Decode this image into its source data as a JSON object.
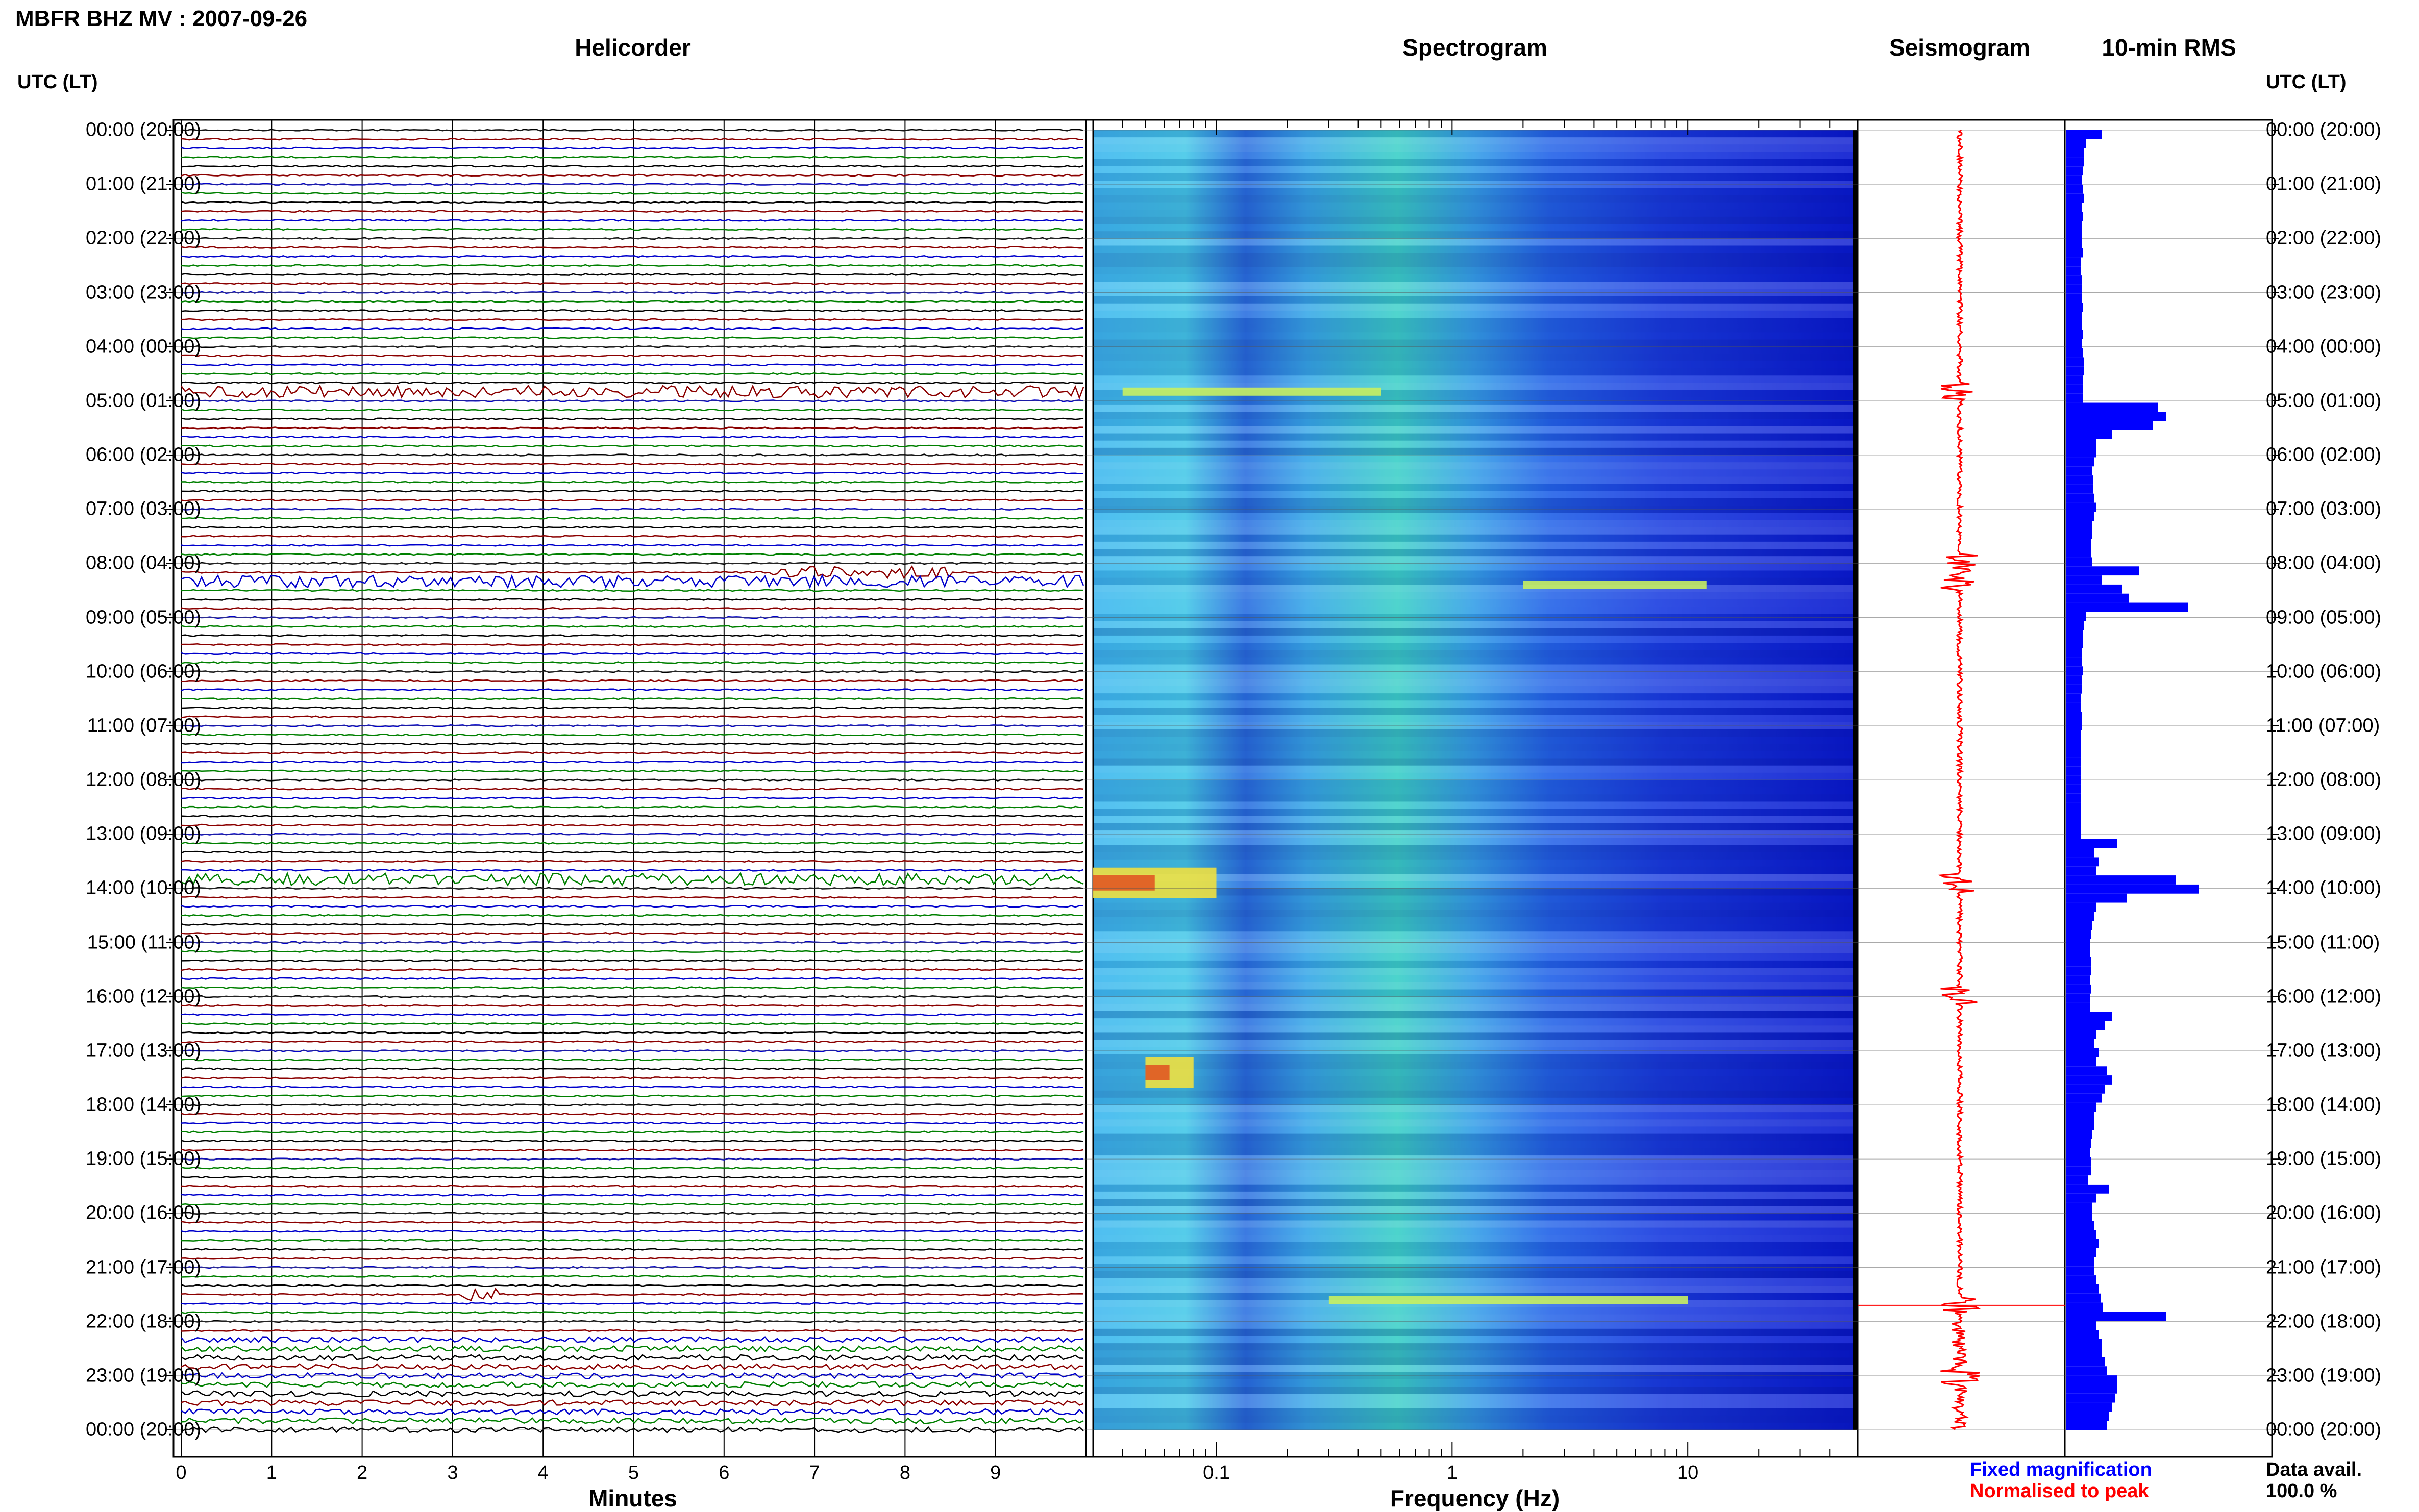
{
  "title": "MBFR BHZ MV : 2007-09-26",
  "panels": {
    "helicorder": "Helicorder",
    "spectrogram": "Spectrogram",
    "seismogram": "Seismogram",
    "rms": "10-min RMS"
  },
  "tz_label_left": "UTC (LT)",
  "tz_label_right": "UTC (LT)",
  "time_labels": [
    "00:00 (20:00)",
    "01:00 (21:00)",
    "02:00 (22:00)",
    "03:00 (23:00)",
    "04:00 (00:00)",
    "05:00 (01:00)",
    "06:00 (02:00)",
    "07:00 (03:00)",
    "08:00 (04:00)",
    "09:00 (05:00)",
    "10:00 (06:00)",
    "11:00 (07:00)",
    "12:00 (08:00)",
    "13:00 (09:00)",
    "14:00 (10:00)",
    "15:00 (11:00)",
    "16:00 (12:00)",
    "17:00 (13:00)",
    "18:00 (14:00)",
    "19:00 (15:00)",
    "20:00 (16:00)",
    "21:00 (17:00)",
    "22:00 (18:00)",
    "23:00 (19:00)",
    "00:00 (20:00)"
  ],
  "x_axis_helicorder": {
    "label": "Minutes",
    "ticks": [
      "0",
      "1",
      "2",
      "3",
      "4",
      "5",
      "6",
      "7",
      "8",
      "9"
    ]
  },
  "x_axis_spectrogram": {
    "label": "Frequency (Hz)",
    "ticks": [
      "0.1",
      "1",
      "10"
    ],
    "scale": "log"
  },
  "legend": {
    "fixed": "Fixed magnification",
    "normalised": "Normalised to peak",
    "fixed_color": "#0000ff",
    "normalised_color": "#ff0000"
  },
  "data_availability": {
    "label": "Data avail.",
    "value": "100.0 %"
  },
  "colors": {
    "trace_cycle": [
      "#000000",
      "#8b0000",
      "#0000cc",
      "#008000"
    ],
    "rms_bar": "#0000ff",
    "seismogram": "#ff0000"
  },
  "chart_data": [
    {
      "type": "line",
      "title": "Helicorder",
      "xlabel": "Minutes",
      "x_range": [
        0,
        10
      ],
      "ylabel": "UTC (LT)",
      "y_range_hours": [
        0,
        24
      ],
      "traces_per_hour": 6,
      "grid": true,
      "notable_events": [
        {
          "hour": 4.83,
          "minute_start": 0,
          "minute_end": 10,
          "description_color": "#8b0000"
        },
        {
          "hour": 8.17,
          "minute_start": 6.5,
          "minute_end": 8.5
        },
        {
          "hour": 8.33,
          "minute_start": 0,
          "minute_end": 10
        },
        {
          "hour": 13.83,
          "minute_start": 0,
          "minute_end": 10
        },
        {
          "hour": 21.5,
          "minute_start": 3.1,
          "minute_end": 3.5
        }
      ]
    },
    {
      "type": "heatmap",
      "title": "Spectrogram",
      "xlabel": "Frequency (Hz)",
      "x_scale": "log",
      "x_range": [
        0.03,
        50
      ],
      "y_range_hours": [
        0,
        24
      ],
      "colormap": "jet",
      "notable_events": [
        {
          "hour": 4.83,
          "f_low": 0.04,
          "f_high": 0.5
        },
        {
          "hour": 8.4,
          "f_low": 2,
          "f_high": 12
        },
        {
          "hour": 13.9,
          "f_low": 0.03,
          "f_high": 0.1
        },
        {
          "hour": 17.4,
          "f_low": 0.05,
          "f_high": 0.08
        },
        {
          "hour": 21.6,
          "f_low": 0.3,
          "f_high": 10
        }
      ]
    },
    {
      "type": "line",
      "title": "Seismogram",
      "y_range_hours": [
        0,
        24
      ],
      "peaks_hours": [
        4.83,
        8.0,
        8.33,
        13.9,
        16.0,
        21.7,
        23.0
      ]
    },
    {
      "type": "bar",
      "title": "10-min RMS",
      "orientation": "horizontal",
      "y_range_hours": [
        0,
        24
      ],
      "interval_minutes": 10,
      "values": [
        0.35,
        0.2,
        0.18,
        0.18,
        0.17,
        0.16,
        0.17,
        0.18,
        0.16,
        0.17,
        0.16,
        0.16,
        0.16,
        0.17,
        0.15,
        0.15,
        0.16,
        0.16,
        0.16,
        0.17,
        0.16,
        0.16,
        0.17,
        0.16,
        0.17,
        0.18,
        0.18,
        0.17,
        0.17,
        0.17,
        0.9,
        0.98,
        0.85,
        0.45,
        0.3,
        0.3,
        0.28,
        0.26,
        0.27,
        0.27,
        0.28,
        0.3,
        0.28,
        0.26,
        0.26,
        0.25,
        0.25,
        0.26,
        0.72,
        0.35,
        0.55,
        0.62,
        1.2,
        0.2,
        0.18,
        0.17,
        0.17,
        0.16,
        0.16,
        0.17,
        0.16,
        0.16,
        0.15,
        0.15,
        0.16,
        0.16,
        0.15,
        0.15,
        0.15,
        0.15,
        0.15,
        0.15,
        0.15,
        0.15,
        0.15,
        0.15,
        0.15,
        0.15,
        0.5,
        0.28,
        0.32,
        0.3,
        1.08,
        1.3,
        0.6,
        0.3,
        0.28,
        0.26,
        0.25,
        0.24,
        0.24,
        0.25,
        0.25,
        0.24,
        0.25,
        0.24,
        0.24,
        0.45,
        0.38,
        0.3,
        0.28,
        0.32,
        0.3,
        0.4,
        0.45,
        0.38,
        0.35,
        0.3,
        0.28,
        0.28,
        0.26,
        0.25,
        0.24,
        0.25,
        0.25,
        0.22,
        0.42,
        0.3,
        0.26,
        0.26,
        0.28,
        0.3,
        0.32,
        0.3,
        0.28,
        0.28,
        0.3,
        0.32,
        0.34,
        0.36,
        0.98,
        0.3,
        0.32,
        0.35,
        0.35,
        0.38,
        0.4,
        0.5,
        0.5,
        0.48,
        0.45,
        0.42,
        0.4
      ]
    }
  ]
}
